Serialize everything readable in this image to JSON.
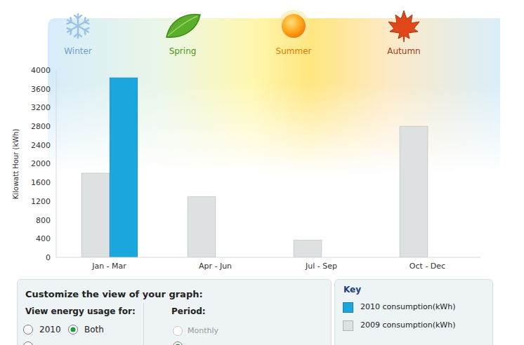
{
  "header": {
    "seasons": [
      "Winter",
      "Spring",
      "Summer",
      "Autumn"
    ]
  },
  "chart_data": {
    "type": "bar",
    "y_label": "Kilowatt Hour (kWh)",
    "categories": [
      "Jan - Mar",
      "Apr - Jun",
      "Jul - Sep",
      "Oct - Dec"
    ],
    "series": [
      {
        "name": "2010 consumption(kWh)",
        "color": "#1ba7dd",
        "values": [
          3840,
          null,
          null,
          null
        ]
      },
      {
        "name": "2009 consumption(kWh)",
        "color": "#dde1e1",
        "values": [
          1800,
          1300,
          370,
          2800
        ]
      }
    ],
    "ylim": [
      0,
      4000
    ],
    "yticks": [
      0,
      400,
      800,
      1200,
      1600,
      2000,
      2400,
      2800,
      3200,
      3600,
      4000
    ],
    "grid": false
  },
  "key": {
    "title": "Key"
  },
  "controls": {
    "title": "Customize the view of your graph:",
    "usage": {
      "label": "View energy usage for:",
      "options": [
        "2010",
        "Both"
      ],
      "selected": "Both"
    },
    "period": {
      "label": "Period:",
      "options": [
        "Monthly"
      ]
    }
  }
}
